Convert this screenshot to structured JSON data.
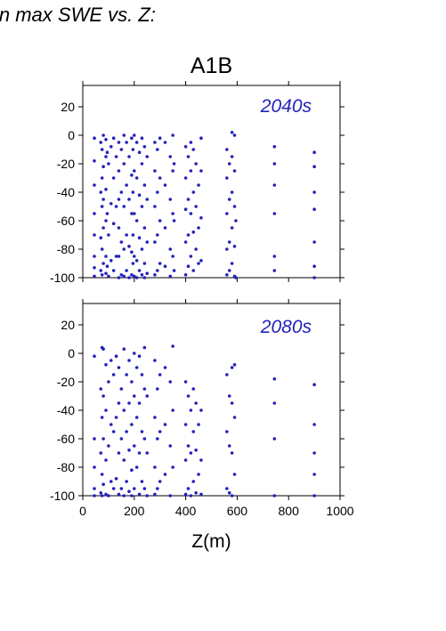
{
  "figure_title": "in max SWE vs. Z:",
  "chart_data": [
    {
      "type": "scatter",
      "title": "A1B",
      "annotation": "2040s",
      "xlabel": "",
      "ylabel": "",
      "xlim": [
        0,
        1000
      ],
      "ylim": [
        -100,
        35
      ],
      "xticks": [
        0,
        200,
        400,
        600,
        800,
        1000
      ],
      "yticks": [
        -100,
        -80,
        -60,
        -40,
        -20,
        0,
        20
      ],
      "grid": false,
      "legend": "none",
      "color": "#2222bb",
      "series": [
        {
          "x": [
            45,
            45,
            45,
            45,
            45,
            45,
            45,
            45,
            70,
            70,
            70,
            70,
            75,
            75,
            75,
            75,
            75,
            80,
            80,
            80,
            80,
            80,
            90,
            90,
            90,
            90,
            90,
            90,
            95,
            95,
            95,
            100,
            100,
            100,
            110,
            110,
            110,
            120,
            120,
            120,
            120,
            130,
            130,
            130,
            140,
            140,
            140,
            140,
            140,
            140,
            150,
            150,
            150,
            150,
            160,
            160,
            160,
            160,
            160,
            170,
            170,
            170,
            170,
            180,
            180,
            180,
            180,
            190,
            190,
            190,
            190,
            190,
            195,
            195,
            195,
            195,
            200,
            200,
            200,
            200,
            200,
            210,
            210,
            210,
            210,
            210,
            220,
            220,
            220,
            220,
            230,
            230,
            230,
            230,
            230,
            240,
            240,
            240,
            240,
            240,
            250,
            250,
            250,
            250,
            280,
            280,
            280,
            280,
            280,
            290,
            290,
            290,
            290,
            300,
            300,
            300,
            300,
            320,
            320,
            320,
            320,
            340,
            340,
            340,
            340,
            350,
            350,
            350,
            350,
            355,
            355,
            355,
            400,
            400,
            400,
            400,
            400,
            410,
            410,
            410,
            410,
            420,
            420,
            420,
            420,
            430,
            430,
            430,
            430,
            440,
            440,
            440,
            450,
            450,
            450,
            460,
            460,
            460,
            460,
            560,
            560,
            560,
            560,
            560,
            570,
            570,
            570,
            570,
            580,
            580,
            580,
            580,
            580,
            590,
            590,
            590,
            590,
            590,
            595,
            595,
            745,
            745,
            745,
            745,
            745,
            745,
            900,
            900,
            900,
            900,
            900,
            900,
            900
          ],
          "y": [
            -2,
            -18,
            -35,
            -55,
            -70,
            -85,
            -93,
            -99,
            -5,
            -40,
            -72,
            -95,
            -10,
            -30,
            -50,
            -80,
            -98,
            0,
            -22,
            -45,
            -65,
            -90,
            -3,
            -15,
            -38,
            -60,
            -85,
            -97,
            -12,
            -55,
            -92,
            -20,
            -70,
            -99,
            -8,
            -48,
            -88,
            -2,
            -30,
            -62,
            -95,
            -15,
            -50,
            -85,
            -5,
            -25,
            -45,
            -65,
            -85,
            -100,
            -10,
            -40,
            -75,
            -98,
            0,
            -20,
            -50,
            -80,
            -99,
            -5,
            -35,
            -70,
            -95,
            -15,
            -45,
            -78,
            -100,
            -2,
            -28,
            -55,
            -82,
            -98,
            -10,
            -40,
            -70,
            -90,
            0,
            -25,
            -55,
            -85,
            -99,
            -5,
            -30,
            -60,
            -88,
            -100,
            -12,
            -42,
            -72,
            -95,
            -2,
            -20,
            -50,
            -80,
            -98,
            -8,
            -35,
            -65,
            -90,
            -100,
            -15,
            -45,
            -75,
            -97,
            -5,
            -25,
            -50,
            -75,
            -98,
            -10,
            -40,
            -70,
            -95,
            -2,
            -30,
            -60,
            -90,
            -5,
            -35,
            -65,
            -92,
            -15,
            -45,
            -80,
            -99,
            0,
            -25,
            -55,
            -85,
            -20,
            -60,
            -95,
            -8,
            -30,
            -52,
            -75,
            -98,
            -15,
            -45,
            -70,
            -92,
            -5,
            -25,
            -55,
            -85,
            -10,
            -40,
            -68,
            -95,
            -20,
            -50,
            -80,
            -35,
            -65,
            -90,
            -2,
            -25,
            -58,
            -88,
            -10,
            -30,
            -55,
            -80,
            -98,
            -20,
            -45,
            -75,
            -95,
            2,
            -15,
            -40,
            -65,
            -90,
            0,
            -25,
            -50,
            -78,
            -99,
            -60,
            -100,
            -8,
            -20,
            -35,
            -55,
            -85,
            -95,
            -12,
            -22,
            -40,
            -52,
            -75,
            -92,
            -100
          ]
        }
      ]
    },
    {
      "type": "scatter",
      "title": "",
      "annotation": "2080s",
      "xlabel": "Z(m)",
      "ylabel": "",
      "xlim": [
        0,
        1000
      ],
      "ylim": [
        -100,
        35
      ],
      "xticks": [
        0,
        200,
        400,
        600,
        800,
        1000
      ],
      "xtick_labels": [
        "0",
        "200",
        "400",
        "600",
        "800",
        "1000"
      ],
      "yticks": [
        -100,
        -80,
        -60,
        -40,
        -20,
        0,
        20
      ],
      "grid": false,
      "legend": "none",
      "color": "#2222bb",
      "series": [
        {
          "x": [
            45,
            45,
            45,
            45,
            45,
            70,
            70,
            70,
            75,
            75,
            75,
            75,
            80,
            80,
            80,
            80,
            90,
            90,
            90,
            90,
            100,
            100,
            100,
            110,
            110,
            110,
            120,
            120,
            120,
            130,
            130,
            130,
            140,
            140,
            140,
            140,
            150,
            150,
            150,
            160,
            160,
            160,
            160,
            170,
            170,
            170,
            180,
            180,
            180,
            180,
            190,
            190,
            190,
            190,
            200,
            200,
            200,
            200,
            210,
            210,
            210,
            220,
            220,
            220,
            220,
            230,
            230,
            230,
            240,
            240,
            240,
            240,
            250,
            250,
            250,
            280,
            280,
            280,
            280,
            290,
            290,
            290,
            300,
            300,
            300,
            320,
            320,
            320,
            340,
            340,
            340,
            350,
            350,
            350,
            400,
            400,
            400,
            400,
            410,
            410,
            410,
            420,
            420,
            420,
            430,
            430,
            430,
            440,
            440,
            440,
            450,
            450,
            460,
            460,
            460,
            560,
            560,
            560,
            570,
            570,
            570,
            580,
            580,
            580,
            580,
            590,
            590,
            590,
            745,
            745,
            745,
            745,
            900,
            900,
            900,
            900,
            900
          ],
          "y": [
            -2,
            -60,
            -80,
            -95,
            -100,
            -25,
            -70,
            -98,
            4,
            -45,
            -85,
            -100,
            3,
            -30,
            -60,
            -92,
            -8,
            -40,
            -75,
            -99,
            -20,
            -65,
            -100,
            -5,
            -50,
            -90,
            -15,
            -55,
            -95,
            -2,
            -45,
            -88,
            -10,
            -35,
            -70,
            -99,
            -25,
            -60,
            -95,
            3,
            -40,
            -75,
            -100,
            -15,
            -55,
            -90,
            -5,
            -35,
            -68,
            -97,
            -20,
            -50,
            -82,
            -100,
            0,
            -30,
            -65,
            -95,
            -10,
            -45,
            -80,
            -2,
            -35,
            -70,
            -99,
            -15,
            -55,
            -90,
            4,
            -25,
            -60,
            -95,
            -30,
            -70,
            -100,
            -5,
            -45,
            -80,
            -99,
            -25,
            -60,
            -95,
            -15,
            -55,
            -90,
            -10,
            -50,
            -85,
            -20,
            -65,
            -100,
            5,
            -40,
            -80,
            -20,
            -50,
            -75,
            -99,
            -30,
            -65,
            -95,
            -40,
            -70,
            -100,
            -25,
            -55,
            -90,
            -35,
            -68,
            -98,
            -50,
            -85,
            -40,
            -75,
            -99,
            -15,
            -55,
            -95,
            -30,
            -65,
            -98,
            -10,
            -35,
            -70,
            -100,
            -8,
            -45,
            -85,
            -18,
            -35,
            -60,
            -100,
            -22,
            -50,
            -70,
            -85,
            -100
          ]
        }
      ]
    }
  ]
}
